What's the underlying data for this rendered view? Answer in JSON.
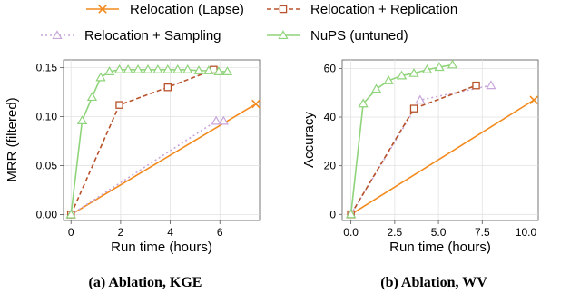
{
  "legend": [
    {
      "series_id": "lapse",
      "label": "Relocation (Lapse)",
      "color": "#f28a1e",
      "marker": "x",
      "dash": "solid"
    },
    {
      "series_id": "replication",
      "label": "Relocation + Replication",
      "color": "#b8522a",
      "marker": "square",
      "dash": "dashed"
    },
    {
      "series_id": "sampling",
      "label": "Relocation + Sampling",
      "color": "#c9a6d9",
      "marker": "triangle",
      "dash": "dotted"
    },
    {
      "series_id": "nups",
      "label": "NuPS (untuned)",
      "color": "#8fd37a",
      "marker": "triangle",
      "dash": "solid"
    }
  ],
  "chart_data": [
    {
      "type": "line",
      "caption": "(a) Ablation, KGE",
      "xlabel": "Run time (hours)",
      "ylabel": "MRR (filtered)",
      "xlim": [
        -0.3,
        7.6
      ],
      "ylim": [
        -0.006,
        0.158
      ],
      "xticks": [
        0,
        2,
        4,
        6
      ],
      "xtick_labels": [
        "0",
        "2",
        "4",
        "6"
      ],
      "yticks": [
        0.0,
        0.05,
        0.1,
        0.15
      ],
      "ytick_labels": [
        "0.00",
        "0.05",
        "0.10",
        "0.15"
      ],
      "grid": true,
      "series": [
        {
          "series_id": "lapse",
          "x": [
            0,
            7.45
          ],
          "y": [
            0.0,
            0.113
          ]
        },
        {
          "series_id": "replication",
          "x": [
            0,
            1.95,
            3.9,
            5.75
          ],
          "y": [
            0.0,
            0.112,
            0.13,
            0.148
          ]
        },
        {
          "series_id": "sampling",
          "x": [
            0,
            5.85,
            6.15
          ],
          "y": [
            0.0,
            0.0955,
            0.0955
          ]
        },
        {
          "series_id": "nups",
          "x": [
            0,
            0.45,
            0.85,
            1.2,
            1.55,
            1.95,
            2.3,
            2.7,
            3.1,
            3.5,
            3.9,
            4.3,
            4.7,
            5.15,
            5.55,
            5.95,
            6.3
          ],
          "y": [
            0.0,
            0.096,
            0.12,
            0.14,
            0.146,
            0.148,
            0.148,
            0.148,
            0.148,
            0.148,
            0.148,
            0.148,
            0.148,
            0.147,
            0.147,
            0.146,
            0.146
          ]
        }
      ]
    },
    {
      "type": "line",
      "caption": "(b) Ablation, WV",
      "xlabel": "Run time (hours)",
      "ylabel": "Accuracy",
      "xlim": [
        -0.5,
        10.7
      ],
      "ylim": [
        -2.5,
        63.5
      ],
      "xticks": [
        0.0,
        2.5,
        5.0,
        7.5,
        10.0
      ],
      "xtick_labels": [
        "0.0",
        "2.5",
        "5.0",
        "7.5",
        "10.0"
      ],
      "yticks": [
        0,
        20,
        40,
        60
      ],
      "ytick_labels": [
        "0",
        "20",
        "40",
        "60"
      ],
      "grid": true,
      "series": [
        {
          "series_id": "lapse",
          "x": [
            0,
            10.45
          ],
          "y": [
            0,
            47
          ]
        },
        {
          "series_id": "replication",
          "x": [
            0,
            3.6,
            7.15
          ],
          "y": [
            0,
            43.5,
            53
          ]
        },
        {
          "series_id": "sampling",
          "x": [
            0,
            3.95,
            8.0
          ],
          "y": [
            0,
            47,
            53
          ]
        },
        {
          "series_id": "nups",
          "x": [
            0,
            0.7,
            1.45,
            2.15,
            2.9,
            3.6,
            4.35,
            5.05,
            5.8
          ],
          "y": [
            0,
            45.5,
            51.5,
            55,
            57,
            58,
            59.5,
            60.5,
            61.5
          ]
        }
      ]
    }
  ]
}
